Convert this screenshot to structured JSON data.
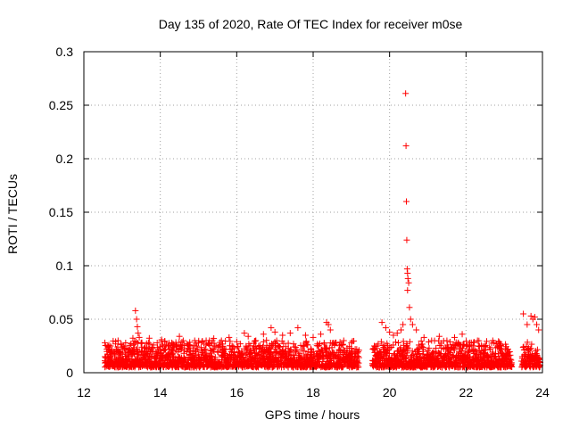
{
  "chart_data": {
    "type": "scatter",
    "title": "Day 135 of 2020, Rate Of TEC Index for receiver m0se",
    "xlabel": "GPS time / hours",
    "ylabel": "ROTI / TECUs",
    "xlim": [
      12,
      24
    ],
    "ylim": [
      0,
      0.3
    ],
    "x_ticks": [
      12,
      14,
      16,
      18,
      20,
      22,
      24
    ],
    "x_tick_labels": [
      "12",
      "14",
      "16",
      "18",
      "20",
      "22",
      "24"
    ],
    "y_ticks": [
      0,
      0.05,
      0.1,
      0.15,
      0.2,
      0.25,
      0.3
    ],
    "y_tick_labels": [
      "0",
      "0.05",
      "0.1",
      "0.15",
      "0.2",
      "0.25",
      "0.3"
    ],
    "grid": true,
    "marker": "+",
    "color": "#ff0000",
    "series": [
      {
        "name": "ROTI",
        "data_gaps_hours": [
          [
            19.2,
            19.55
          ],
          [
            23.2,
            23.45
          ]
        ],
        "points": [
          [
            12.55,
            0.028
          ],
          [
            12.6,
            0.022
          ],
          [
            12.7,
            0.025
          ],
          [
            12.8,
            0.018
          ],
          [
            12.9,
            0.02
          ],
          [
            13.0,
            0.024
          ],
          [
            13.1,
            0.022
          ],
          [
            13.2,
            0.02
          ],
          [
            13.3,
            0.026
          ],
          [
            13.35,
            0.058
          ],
          [
            13.38,
            0.05
          ],
          [
            13.4,
            0.043
          ],
          [
            13.42,
            0.037
          ],
          [
            13.45,
            0.033
          ],
          [
            13.5,
            0.028
          ],
          [
            13.6,
            0.024
          ],
          [
            13.7,
            0.022
          ],
          [
            13.8,
            0.02
          ],
          [
            13.9,
            0.018
          ],
          [
            14.0,
            0.022
          ],
          [
            14.2,
            0.025
          ],
          [
            14.3,
            0.028
          ],
          [
            14.5,
            0.034
          ],
          [
            14.6,
            0.03
          ],
          [
            14.7,
            0.027
          ],
          [
            14.9,
            0.03
          ],
          [
            15.0,
            0.028
          ],
          [
            15.2,
            0.03
          ],
          [
            15.4,
            0.032
          ],
          [
            15.6,
            0.03
          ],
          [
            15.8,
            0.033
          ],
          [
            16.0,
            0.029
          ],
          [
            16.2,
            0.037
          ],
          [
            16.3,
            0.034
          ],
          [
            16.5,
            0.03
          ],
          [
            16.7,
            0.036
          ],
          [
            16.9,
            0.042
          ],
          [
            17.0,
            0.038
          ],
          [
            17.2,
            0.035
          ],
          [
            17.4,
            0.037
          ],
          [
            17.6,
            0.042
          ],
          [
            17.8,
            0.035
          ],
          [
            18.0,
            0.033
          ],
          [
            18.2,
            0.036
          ],
          [
            18.35,
            0.047
          ],
          [
            18.4,
            0.045
          ],
          [
            18.45,
            0.04
          ],
          [
            18.6,
            0.028
          ],
          [
            18.8,
            0.03
          ],
          [
            19.0,
            0.028
          ],
          [
            19.1,
            0.022
          ],
          [
            19.6,
            0.025
          ],
          [
            19.8,
            0.047
          ],
          [
            19.9,
            0.042
          ],
          [
            20.0,
            0.038
          ],
          [
            20.1,
            0.035
          ],
          [
            20.2,
            0.037
          ],
          [
            20.3,
            0.04
          ],
          [
            20.35,
            0.045
          ],
          [
            20.42,
            0.261
          ],
          [
            20.43,
            0.212
          ],
          [
            20.44,
            0.16
          ],
          [
            20.45,
            0.124
          ],
          [
            20.46,
            0.097
          ],
          [
            20.47,
            0.093
          ],
          [
            20.48,
            0.088
          ],
          [
            20.5,
            0.084
          ],
          [
            20.47,
            0.077
          ],
          [
            20.52,
            0.061
          ],
          [
            20.55,
            0.05
          ],
          [
            20.6,
            0.045
          ],
          [
            20.7,
            0.04
          ],
          [
            20.9,
            0.033
          ],
          [
            21.1,
            0.03
          ],
          [
            21.3,
            0.034
          ],
          [
            21.5,
            0.03
          ],
          [
            21.7,
            0.033
          ],
          [
            21.9,
            0.036
          ],
          [
            22.1,
            0.028
          ],
          [
            22.3,
            0.03
          ],
          [
            22.5,
            0.025
          ],
          [
            22.7,
            0.03
          ],
          [
            22.9,
            0.025
          ],
          [
            23.1,
            0.022
          ],
          [
            23.5,
            0.055
          ],
          [
            23.6,
            0.045
          ],
          [
            23.7,
            0.053
          ],
          [
            23.75,
            0.05
          ],
          [
            23.8,
            0.052
          ],
          [
            23.85,
            0.045
          ],
          [
            23.9,
            0.04
          ]
        ],
        "dense_band": {
          "description": "dense continuous cluster of crosses",
          "typical_min": 0.005,
          "typical_max": 0.03
        }
      }
    ]
  }
}
